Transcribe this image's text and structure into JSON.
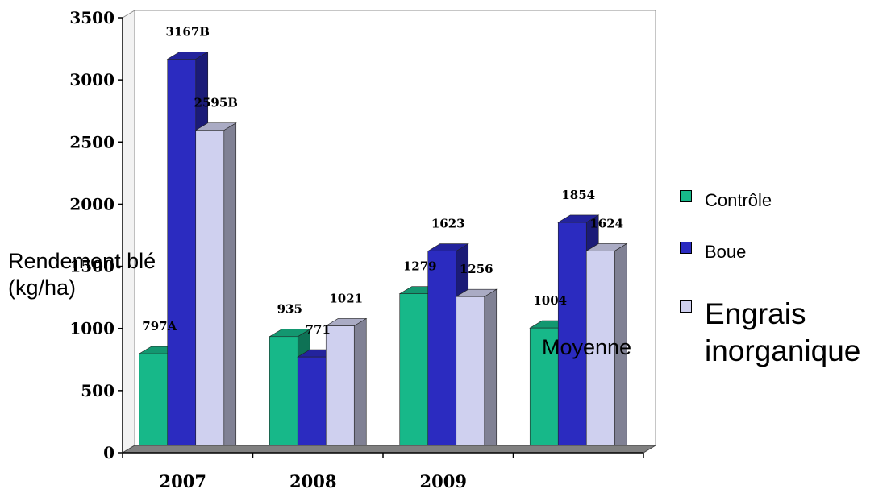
{
  "chart_data": {
    "type": "bar",
    "categories": [
      "2007",
      "2008",
      "2009",
      ""
    ],
    "series": [
      {
        "name": "Contrôle",
        "values": [
          797,
          935,
          1279,
          1004
        ],
        "labels": [
          "797A",
          "935",
          "1279",
          "1004"
        ],
        "color": "#17b889"
      },
      {
        "name": "Boue",
        "values": [
          3167,
          771,
          1623,
          1854
        ],
        "labels": [
          "3167B",
          "771",
          "1623",
          "1854"
        ],
        "color": "#2b2bc0"
      },
      {
        "name": "Engrais inorganique",
        "values": [
          2595,
          1021,
          1256,
          1624
        ],
        "labels": [
          "2595B",
          "1021",
          "1256",
          "1624"
        ],
        "color": "#cfd0ef"
      }
    ],
    "ylabel": "Rendement blé (kg/ha)",
    "ylim": [
      0,
      3500
    ],
    "yticks": [
      "0",
      "500",
      "1000",
      "1500",
      "2000",
      "2500",
      "3000",
      "3500"
    ],
    "annotation": "Moyenne",
    "legend_position": "right",
    "grid": false
  }
}
